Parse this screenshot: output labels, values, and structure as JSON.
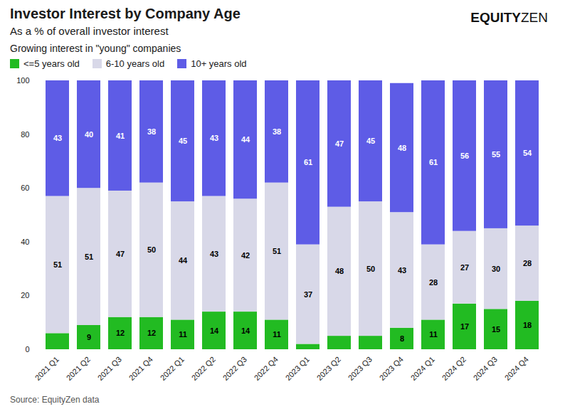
{
  "chart_data": {
    "type": "bar",
    "stacked": true,
    "title": "Investor Interest by Company Age",
    "subtitle": "As a % of overall investor interest",
    "caption": "Growing interest in \"young\" companies",
    "source": "Source: EquityZen data",
    "annotations": [
      "EQUITY",
      "ZEN"
    ],
    "categories": [
      "2021 Q1",
      "2021 Q2",
      "2021 Q3",
      "2021 Q4",
      "2022 Q1",
      "2022 Q2",
      "2022 Q3",
      "2022 Q4",
      "2023 Q1",
      "2023 Q2",
      "2023 Q3",
      "2023 Q4",
      "2024 Q1",
      "2024 Q2",
      "2024 Q3",
      "2024 Q4"
    ],
    "series": [
      {
        "name": "<=5 years old",
        "color": "#22bb22",
        "values": [
          6,
          9,
          12,
          12,
          11,
          14,
          14,
          11,
          2,
          5,
          5,
          8,
          11,
          17,
          15,
          18
        ],
        "value_labels": [
          null,
          "9",
          "12",
          "12",
          "11",
          "14",
          "14",
          "11",
          null,
          null,
          null,
          "8",
          "11",
          "17",
          "15",
          "18"
        ]
      },
      {
        "name": "6-10 years old",
        "color": "#d8d8e8",
        "values": [
          51,
          51,
          47,
          50,
          44,
          43,
          42,
          51,
          37,
          48,
          50,
          43,
          28,
          27,
          30,
          28
        ]
      },
      {
        "name": "10+ years old",
        "color": "#5e5ce6",
        "values": [
          43,
          40,
          41,
          38,
          45,
          43,
          44,
          38,
          61,
          47,
          45,
          48,
          61,
          56,
          55,
          54
        ]
      }
    ],
    "ylim": [
      0,
      100
    ],
    "yticks": [
      0,
      20,
      40,
      60,
      80,
      100
    ],
    "grid": false,
    "legend": "top",
    "data_labels": true
  }
}
